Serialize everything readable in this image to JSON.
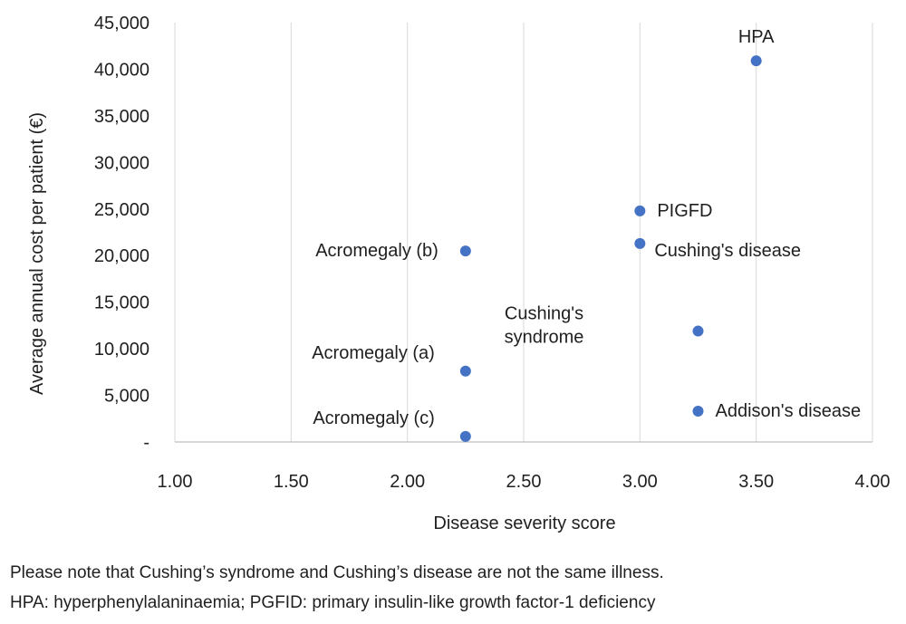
{
  "chart_data": {
    "type": "scatter",
    "xlabel": "Disease severity score",
    "ylabel": "Average annual cost per patient (€)",
    "xlim": [
      1.0,
      4.0
    ],
    "ylim": [
      0,
      45000
    ],
    "x_ticks": [
      "1.00",
      "1.50",
      "2.00",
      "2.50",
      "3.00",
      "3.50",
      "4.00"
    ],
    "y_ticks": [
      "-",
      "5,000",
      "10,000",
      "15,000",
      "20,000",
      "25,000",
      "30,000",
      "35,000",
      "40,000",
      "45,000"
    ],
    "grid": "vertical",
    "marker_color": "#4472c4",
    "points": [
      {
        "label": "HPA",
        "x": 3.5,
        "y": 40900,
        "label_pos": "above"
      },
      {
        "label": "PIGFD",
        "x": 3.0,
        "y": 24800,
        "label_pos": "right"
      },
      {
        "label": "Cushing's disease",
        "x": 3.0,
        "y": 21300,
        "label_pos": "below-right"
      },
      {
        "label": "Acromegaly (b)",
        "x": 2.25,
        "y": 20500,
        "label_pos": "left"
      },
      {
        "label": "Cushing's syndrome",
        "x": 3.25,
        "y": 11900,
        "label_pos": "far-left"
      },
      {
        "label": "Acromegaly (a)",
        "x": 2.25,
        "y": 7600,
        "label_pos": "upper-left"
      },
      {
        "label": "Addison's disease",
        "x": 3.25,
        "y": 3300,
        "label_pos": "right"
      },
      {
        "label": "Acromegaly (c)",
        "x": 2.25,
        "y": 600,
        "label_pos": "upper-left"
      }
    ]
  },
  "footnotes": [
    "Please note that Cushing’s syndrome and Cushing’s disease are not the same illness.",
    "HPA: hyperphenylalaninaemia; PGFID: primary insulin-like growth factor-1 deficiency"
  ]
}
